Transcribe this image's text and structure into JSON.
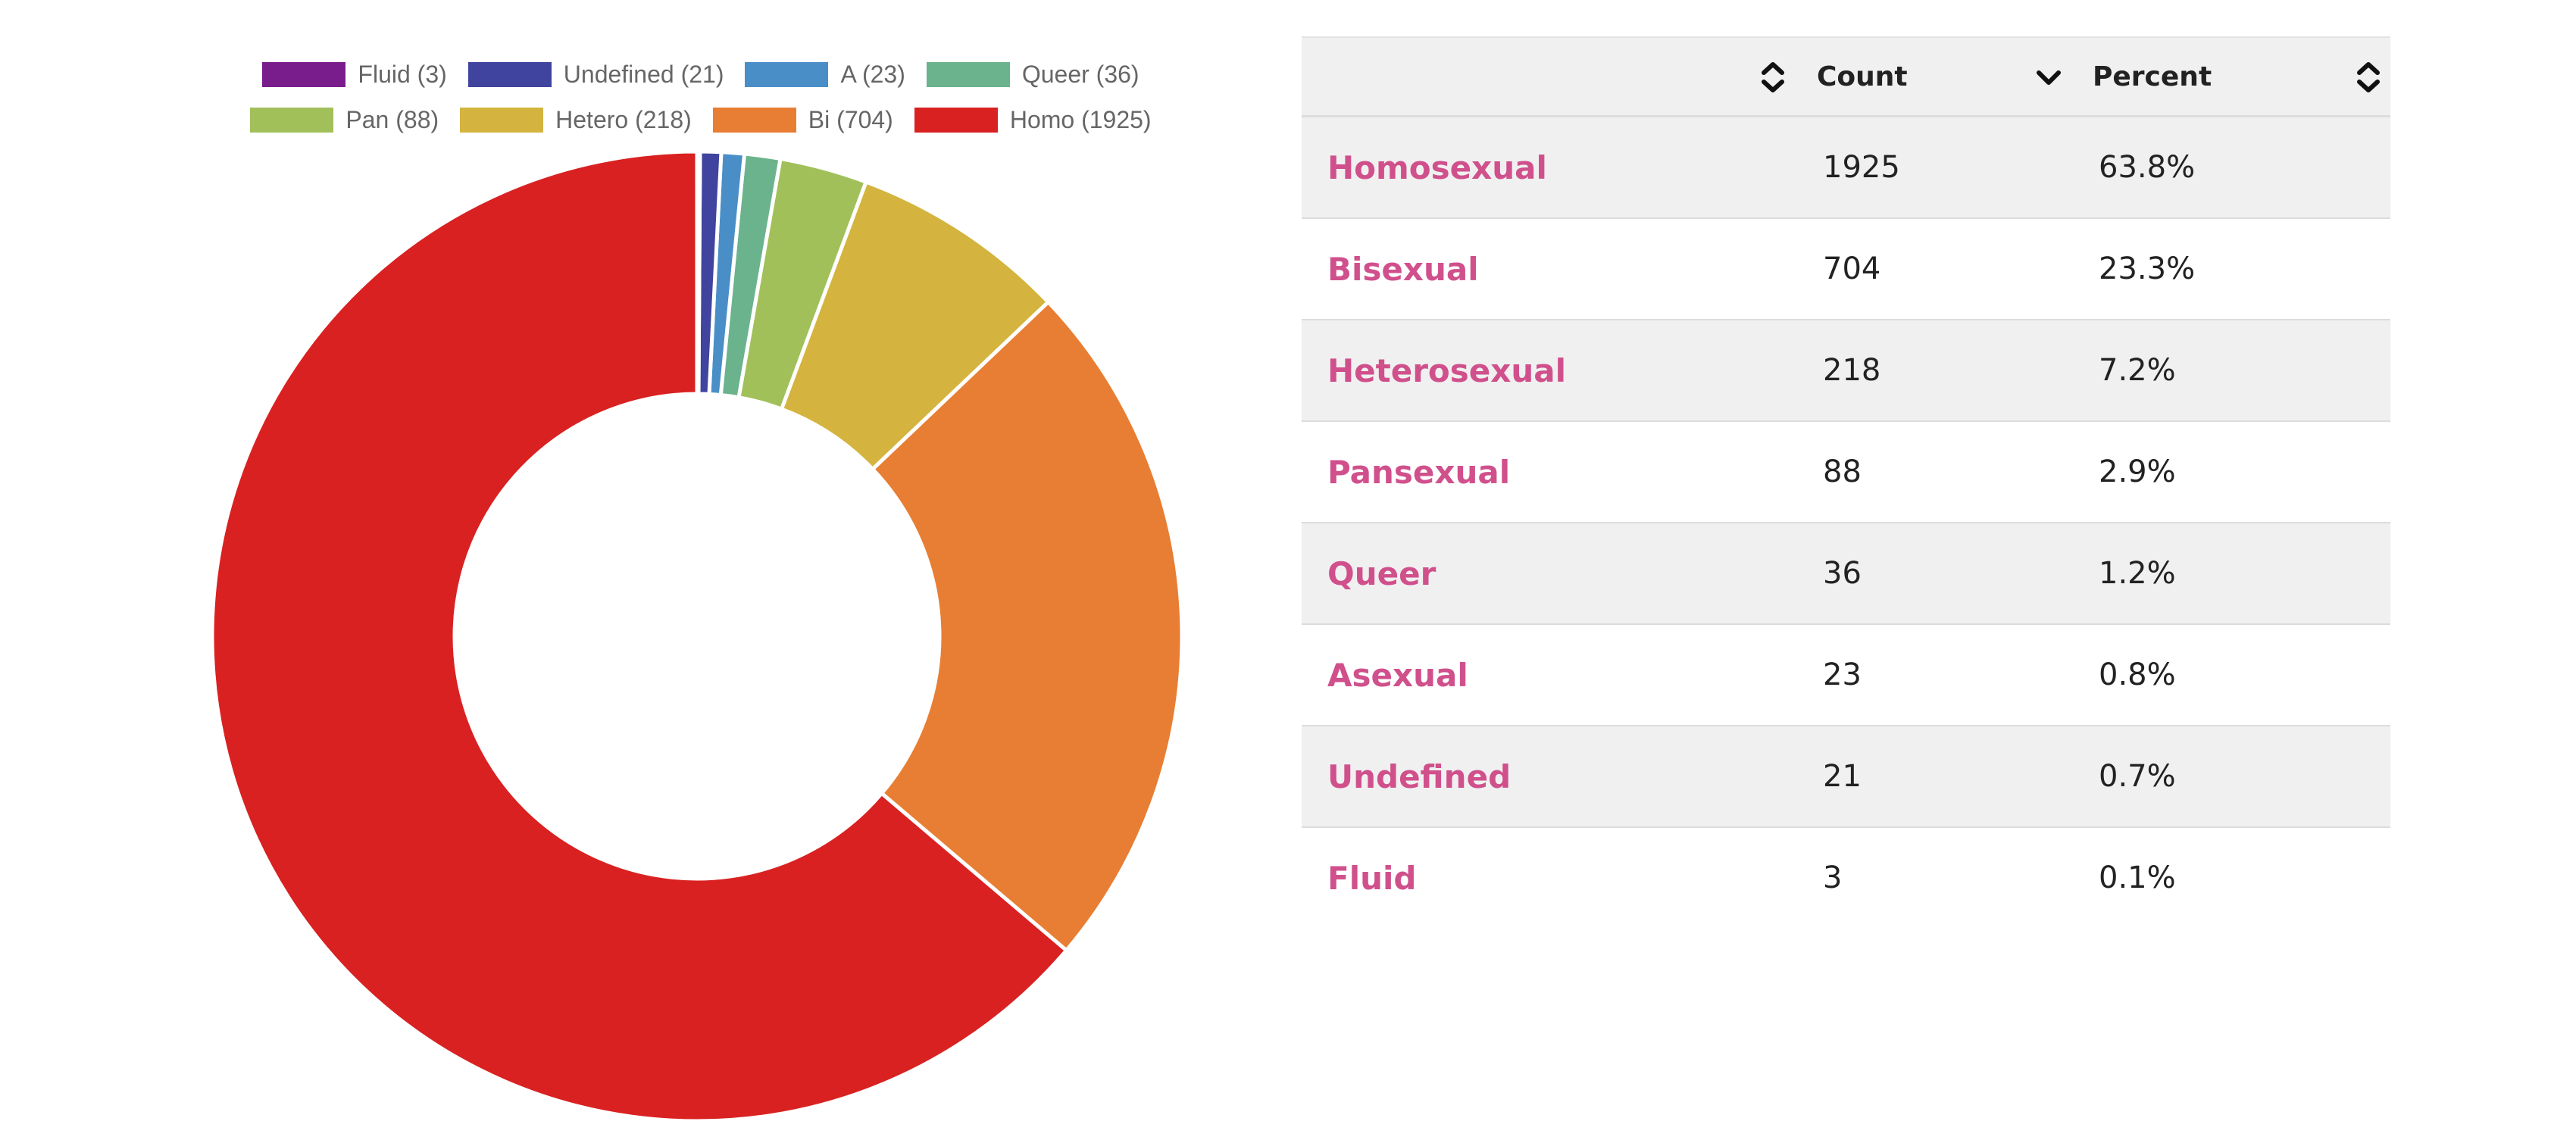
{
  "chart_data": {
    "type": "pie",
    "variant": "donut",
    "labels": [
      "Homo",
      "Bi",
      "Hetero",
      "Pan",
      "Queer",
      "A",
      "Undefined",
      "Fluid"
    ],
    "values": [
      1925,
      704,
      218,
      88,
      36,
      23,
      21,
      3
    ],
    "colors": [
      "#d92121",
      "#e87e33",
      "#d4b43f",
      "#a1c05a",
      "#6bb38c",
      "#4a8ec8",
      "#40449e",
      "#7a1d8c"
    ],
    "legend": {
      "placement": "top",
      "rows": [
        [
          {
            "text": "Fluid (3)",
            "color": "#7a1d8c"
          },
          {
            "text": "Undefined (21)",
            "color": "#40449e"
          },
          {
            "text": "A (23)",
            "color": "#4a8ec8"
          },
          {
            "text": "Queer (36)",
            "color": "#6bb38c"
          }
        ],
        [
          {
            "text": "Pan (88)",
            "color": "#a1c05a"
          },
          {
            "text": "Hetero (218)",
            "color": "#d4b43f"
          },
          {
            "text": "Bi (704)",
            "color": "#e87e33"
          },
          {
            "text": "Homo (1925)",
            "color": "#d92121"
          }
        ]
      ]
    }
  },
  "table": {
    "headers": {
      "count": "Count",
      "percent": "Percent"
    },
    "rows": [
      {
        "label": "Homosexual",
        "count": "1925",
        "percent": "63.8%"
      },
      {
        "label": "Bisexual",
        "count": "704",
        "percent": "23.3%"
      },
      {
        "label": "Heterosexual",
        "count": "218",
        "percent": "7.2%"
      },
      {
        "label": "Pansexual",
        "count": "88",
        "percent": "2.9%"
      },
      {
        "label": "Queer",
        "count": "36",
        "percent": "1.2%"
      },
      {
        "label": "Asexual",
        "count": "23",
        "percent": "0.8%"
      },
      {
        "label": "Undefined",
        "count": "21",
        "percent": "0.7%"
      },
      {
        "label": "Fluid",
        "count": "3",
        "percent": "0.1%"
      }
    ]
  }
}
